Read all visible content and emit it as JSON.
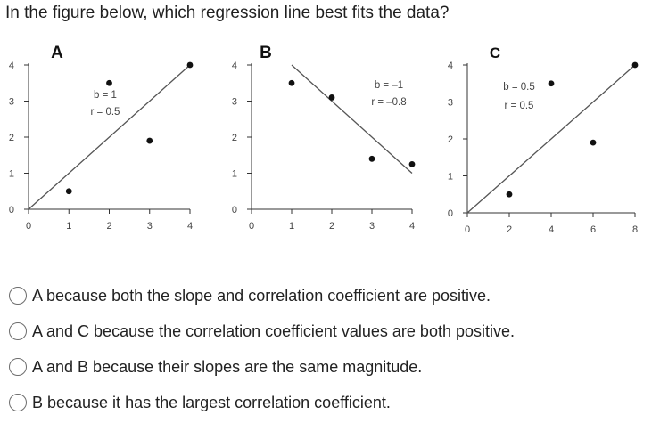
{
  "question": {
    "text": "In the figure below, which regression line best fits the data?"
  },
  "options": [
    {
      "label": "A because both the slope and correlation coefficient are positive."
    },
    {
      "label": "A and C because the correlation coefficient values are both positive."
    },
    {
      "label": "A and B because their slopes are the same magnitude."
    },
    {
      "label": "B because it has the largest correlation coefficient."
    }
  ],
  "chart_data": [
    {
      "type": "scatter",
      "panel_label": "A",
      "xlim": [
        0,
        4
      ],
      "ylim": [
        0,
        4
      ],
      "xticks": [
        "0",
        "1",
        "2",
        "3",
        "4"
      ],
      "yticks": [
        "0",
        "1",
        "2",
        "3",
        "4"
      ],
      "points": [
        [
          1,
          0.5
        ],
        [
          2,
          3.5
        ],
        [
          3,
          1.9
        ],
        [
          4,
          4
        ]
      ],
      "regression_line": [
        [
          0,
          0
        ],
        [
          4,
          4
        ]
      ],
      "annotations": [
        "b = 1",
        "r = 0.5"
      ]
    },
    {
      "type": "scatter",
      "panel_label": "B",
      "xlim": [
        0,
        4
      ],
      "ylim": [
        0,
        4
      ],
      "xticks": [
        "0",
        "1",
        "2",
        "3",
        "4"
      ],
      "yticks": [
        "0",
        "1",
        "2",
        "3",
        "4"
      ],
      "points": [
        [
          1,
          3.5
        ],
        [
          2,
          3.1
        ],
        [
          3,
          1.4
        ],
        [
          4,
          1.25
        ]
      ],
      "regression_line": [
        [
          1,
          4
        ],
        [
          4,
          1
        ]
      ],
      "annotations": [
        "b = –1",
        "r = –0.8"
      ]
    },
    {
      "type": "scatter",
      "panel_label": "C",
      "xlim": [
        0,
        8
      ],
      "ylim": [
        0,
        4
      ],
      "xticks": [
        "0",
        "2",
        "4",
        "6",
        "8"
      ],
      "yticks": [
        "0",
        "1",
        "2",
        "3",
        "4"
      ],
      "points": [
        [
          2,
          0.5
        ],
        [
          4,
          3.5
        ],
        [
          6,
          1.9
        ],
        [
          8,
          4
        ]
      ],
      "regression_line": [
        [
          0,
          0
        ],
        [
          8,
          4
        ]
      ],
      "annotations": [
        "b = 0.5",
        "r = 0.5"
      ]
    }
  ]
}
